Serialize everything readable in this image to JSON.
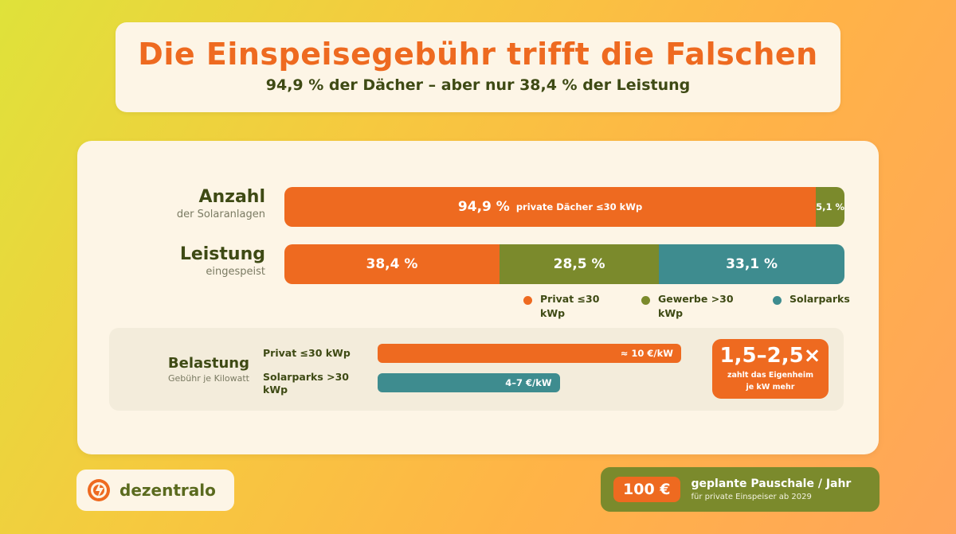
{
  "header": {
    "title": "Die Einspeisegebühr trifft die Falschen",
    "subtitle": "94,9 % der Dächer – aber nur 38,4 % der Leistung"
  },
  "colors": {
    "orange": "#ee6a20",
    "green": "#7b8a2c",
    "teal": "#3e8c8f",
    "dark_text": "#3e4a14"
  },
  "chart_data": {
    "type": "bar",
    "orientation": "horizontal-stacked",
    "rows": [
      {
        "label": "Anzahl",
        "sublabel": "der Solaranlagen",
        "segments": [
          {
            "value": 94.9,
            "display": "94,9 %",
            "desc": "private Dächer ≤30 kWp",
            "color": "#ee6a20"
          },
          {
            "value": 5.1,
            "display": "5,1 %",
            "desc": "",
            "color": "#7b8a2c"
          }
        ]
      },
      {
        "label": "Leistung",
        "sublabel": "eingespeist",
        "segments": [
          {
            "value": 38.4,
            "display": "38,4 %",
            "desc": "",
            "color": "#ee6a20"
          },
          {
            "value": 28.5,
            "display": "28,5 %",
            "desc": "",
            "color": "#7b8a2c"
          },
          {
            "value": 33.1,
            "display": "33,1 %",
            "desc": "",
            "color": "#3e8c8f"
          }
        ]
      }
    ],
    "legend": [
      {
        "label": "Privat ≤30 kWp",
        "color": "#ee6a20"
      },
      {
        "label": "Gewerbe >30 kWp",
        "color": "#7b8a2c"
      },
      {
        "label": "Solarparks",
        "color": "#3e8c8f"
      }
    ],
    "legend_position": "bottom-right"
  },
  "burden": {
    "label": "Belastung",
    "sublabel": "Gebühr je Kilowatt",
    "max_value": 10.5,
    "rows": [
      {
        "label": "Privat ≤30 kWp",
        "value": 10,
        "display": "≈ 10 €/kW",
        "color": "#ee6a20"
      },
      {
        "label": "Solarparks >30 kWp",
        "value": 6,
        "display": "4–7 €/kW",
        "color": "#3e8c8f"
      }
    ],
    "factor": {
      "value": "1,5–2,5×",
      "line1": "zahlt das Eigenheim",
      "line2": "je kW mehr"
    }
  },
  "footer": {
    "logo_text": "dezentralo",
    "fee_badge": "100 €",
    "fee_title": "geplante Pauschale / Jahr",
    "fee_sub": "für private Einspeiser ab 2029"
  }
}
